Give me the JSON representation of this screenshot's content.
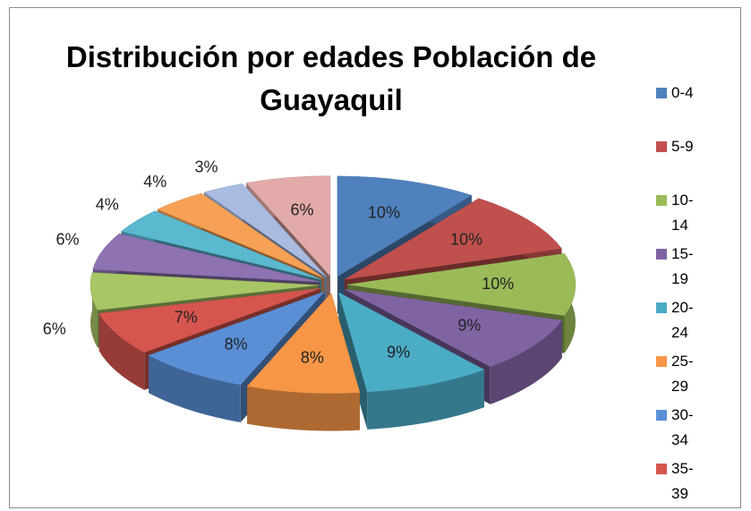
{
  "chart_data": {
    "type": "pie3d",
    "title": "Distribución por edades Población de Guayaquil",
    "categories": [
      "0-4",
      "5-9",
      "10-14",
      "15-19",
      "20-24",
      "25-29",
      "30-34",
      "35-39",
      null,
      null,
      null,
      null,
      null,
      null
    ],
    "values": [
      10,
      10,
      10,
      9,
      9,
      8,
      8,
      7,
      6,
      6,
      4,
      4,
      3,
      6
    ],
    "value_labels": [
      "10%",
      "10%",
      "10%",
      "9%",
      "9%",
      "8%",
      "8%",
      "7%",
      "6%",
      "6%",
      "4%",
      "4%",
      "3%",
      "6%"
    ],
    "colors": [
      "#4f81bd",
      "#c0504d",
      "#9bbb59",
      "#8064a2",
      "#4bacc6",
      "#f79646",
      "#5a8fd6",
      "#d6554f",
      "#a8c665",
      "#8e72b2",
      "#5ab8cf",
      "#f7a156",
      "#a9bbe0",
      "#e2aaa8"
    ],
    "legend": "right"
  }
}
